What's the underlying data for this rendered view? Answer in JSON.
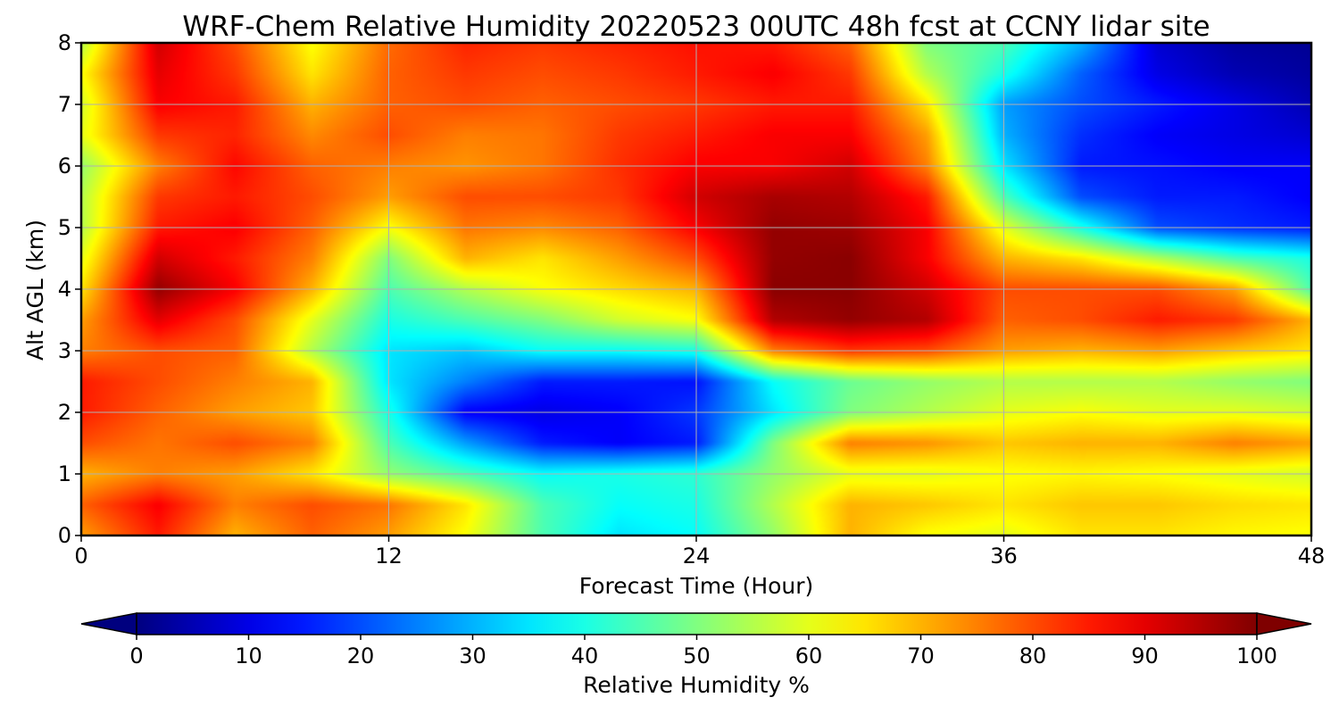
{
  "chart_data": {
    "type": "heatmap",
    "title": "WRF-Chem Relative Humidity 20220523 00UTC 48h fcst at CCNY lidar site",
    "xlabel": "Forecast Time (Hour)",
    "ylabel": "Alt AGL (km)",
    "xlim": [
      0,
      48
    ],
    "ylim": [
      0,
      8
    ],
    "x_ticks": [
      "0",
      "12",
      "24",
      "36",
      "48"
    ],
    "y_ticks": [
      "0",
      "1",
      "2",
      "3",
      "4",
      "5",
      "6",
      "7",
      "8"
    ],
    "grid": true,
    "colormap": "jet",
    "colorbar": {
      "label": "Relative Humidity %",
      "range": [
        0,
        100
      ],
      "ticks": [
        "0",
        "10",
        "20",
        "30",
        "40",
        "50",
        "60",
        "70",
        "80",
        "90",
        "100"
      ],
      "extend": "both",
      "under_color": "#00007f",
      "over_color": "#7f0000"
    },
    "x_hours": [
      0,
      3,
      6,
      9,
      12,
      15,
      18,
      21,
      24,
      27,
      30,
      33,
      36,
      39,
      42,
      45,
      48
    ],
    "y_km": [
      0,
      0.5,
      1,
      1.5,
      2,
      2.5,
      3,
      3.5,
      4,
      4.5,
      5,
      5.5,
      6,
      6.5,
      7,
      7.5,
      8
    ],
    "values": [
      [
        72,
        85,
        70,
        78,
        72,
        62,
        45,
        35,
        38,
        52,
        70,
        62,
        60,
        65,
        65,
        63,
        62
      ],
      [
        78,
        88,
        75,
        80,
        76,
        65,
        45,
        38,
        40,
        55,
        70,
        68,
        65,
        68,
        68,
        66,
        65
      ],
      [
        70,
        75,
        72,
        65,
        52,
        45,
        38,
        40,
        42,
        52,
        60,
        60,
        62,
        63,
        62,
        60,
        58
      ],
      [
        80,
        76,
        80,
        75,
        45,
        28,
        15,
        12,
        15,
        50,
        75,
        73,
        68,
        70,
        70,
        75,
        72
      ],
      [
        85,
        78,
        72,
        68,
        40,
        12,
        10,
        12,
        18,
        35,
        50,
        55,
        60,
        62,
        60,
        60,
        58
      ],
      [
        85,
        80,
        75,
        70,
        35,
        25,
        15,
        15,
        14,
        38,
        48,
        52,
        55,
        55,
        55,
        52,
        50
      ],
      [
        75,
        80,
        78,
        55,
        35,
        32,
        38,
        38,
        40,
        75,
        82,
        80,
        72,
        70,
        72,
        68,
        65
      ],
      [
        72,
        90,
        80,
        60,
        40,
        45,
        50,
        58,
        62,
        95,
        98,
        95,
        78,
        80,
        85,
        82,
        70
      ],
      [
        65,
        98,
        88,
        70,
        45,
        55,
        62,
        66,
        70,
        99,
        99,
        92,
        80,
        80,
        80,
        72,
        45
      ],
      [
        60,
        92,
        85,
        75,
        50,
        70,
        65,
        72,
        80,
        98,
        99,
        88,
        70,
        65,
        55,
        45,
        40
      ],
      [
        55,
        85,
        88,
        78,
        62,
        76,
        74,
        78,
        88,
        98,
        97,
        88,
        60,
        40,
        20,
        17,
        15
      ],
      [
        55,
        82,
        85,
        80,
        72,
        80,
        80,
        82,
        92,
        96,
        95,
        85,
        45,
        20,
        15,
        15,
        12
      ],
      [
        52,
        75,
        87,
        78,
        75,
        73,
        76,
        83,
        88,
        88,
        92,
        75,
        35,
        15,
        14,
        12,
        12
      ],
      [
        60,
        82,
        84,
        74,
        80,
        75,
        76,
        82,
        85,
        88,
        88,
        72,
        30,
        17,
        12,
        10,
        8
      ],
      [
        58,
        88,
        85,
        70,
        78,
        80,
        78,
        80,
        82,
        85,
        85,
        65,
        28,
        20,
        15,
        10,
        5
      ],
      [
        62,
        90,
        82,
        65,
        78,
        82,
        80,
        82,
        85,
        88,
        82,
        55,
        40,
        22,
        10,
        5,
        3
      ],
      [
        55,
        92,
        80,
        62,
        77,
        84,
        82,
        84,
        86,
        85,
        78,
        50,
        45,
        30,
        8,
        3,
        2
      ]
    ]
  }
}
